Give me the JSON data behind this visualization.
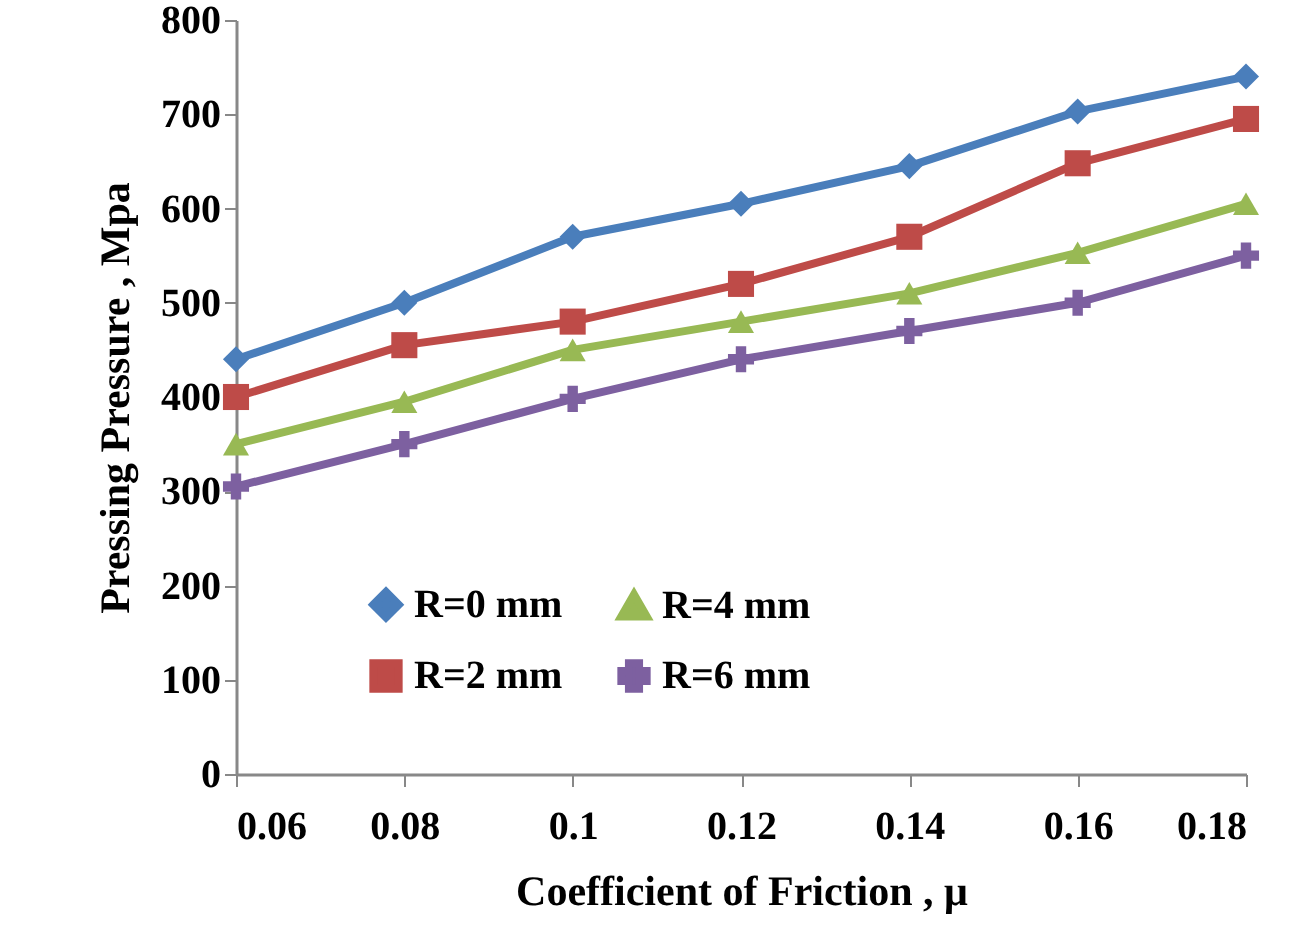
{
  "chart_data": {
    "type": "line",
    "xlabel": "Coefficient of Friction , μ",
    "ylabel": "Pressing Pressure , Mpa",
    "x": [
      0.06,
      0.08,
      0.1,
      0.12,
      0.14,
      0.16,
      0.18
    ],
    "series": [
      {
        "name": "R=0 mm",
        "color": "#4a7ebb",
        "marker": "diamond",
        "values": [
          440,
          500,
          570,
          605,
          645,
          703,
          740
        ]
      },
      {
        "name": "R=2 mm",
        "color": "#be4b48",
        "marker": "square",
        "values": [
          400,
          455,
          480,
          520,
          570,
          648,
          695
        ]
      },
      {
        "name": "R=4 mm",
        "color": "#98b954",
        "marker": "triangle",
        "values": [
          350,
          395,
          450,
          480,
          510,
          553,
          605
        ]
      },
      {
        "name": "R=6 mm",
        "color": "#7d60a0",
        "marker": "cross",
        "values": [
          305,
          350,
          398,
          440,
          470,
          500,
          550
        ]
      }
    ],
    "xlim": [
      0.06,
      0.18
    ],
    "xticks": [
      0.06,
      0.08,
      0.1,
      0.12,
      0.14,
      0.16,
      0.18
    ],
    "ylim": [
      0,
      800
    ],
    "yticks": [
      0,
      100,
      200,
      300,
      400,
      500,
      600,
      700,
      800
    ],
    "grid": false,
    "legend": "bottom",
    "line_style": "solid"
  }
}
